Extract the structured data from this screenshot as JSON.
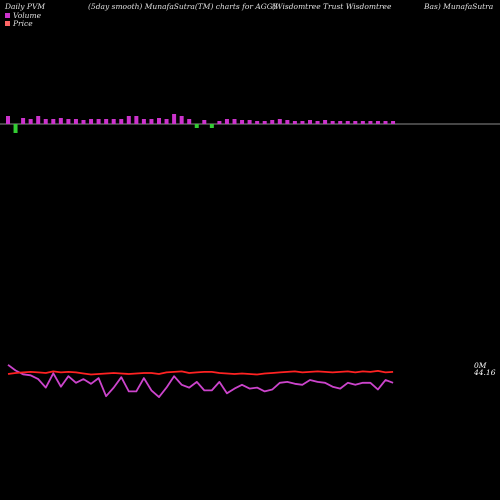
{
  "header": {
    "left": "Daily PVM",
    "center": "(5day smooth) MunafaSutra(TM) charts for AGGY",
    "right1": "(Wisdomtree   Trust Wisdomtree",
    "right2": "Bas) MunafaSutra"
  },
  "legend": {
    "volume_label": "Volume",
    "price_label": "Price",
    "volume_color": "#cc33cc",
    "price_color": "#ff6666"
  },
  "labels": {
    "volume_end": "0M",
    "price_end": "44.16"
  },
  "colors": {
    "background": "#000000",
    "axis": "#bbbbbb",
    "bar_up": "#cc33cc",
    "bar_down": "#33cc33",
    "volume_line": "#cc44cc",
    "price_line": "#ff2222"
  },
  "chart_data": {
    "type": "line",
    "x_count": 52,
    "volume_bars": [
      8,
      -9,
      6,
      5,
      8,
      5,
      5,
      6,
      5,
      5,
      4,
      5,
      5,
      5,
      5,
      5,
      8,
      8,
      5,
      5,
      6,
      5,
      10,
      8,
      5,
      -4,
      4,
      -4,
      3,
      5,
      5,
      4,
      4,
      3,
      3,
      4,
      5,
      4,
      3,
      3,
      4,
      3,
      4,
      3,
      3,
      3,
      3,
      3,
      3,
      3,
      3,
      3
    ],
    "volume_line": [
      66,
      60,
      56,
      55,
      51,
      42,
      57,
      43,
      54,
      47,
      51,
      46,
      52,
      33,
      42,
      53,
      38,
      38,
      52,
      39,
      32,
      42,
      54,
      45,
      42,
      48,
      39,
      39,
      48,
      36,
      41,
      45,
      41,
      42,
      38,
      40,
      47,
      48,
      46,
      45,
      50,
      48,
      47,
      43,
      41,
      47,
      45,
      47,
      47,
      40,
      50,
      47
    ],
    "price_line": [
      50,
      52,
      53,
      54,
      53,
      52,
      55,
      53,
      54,
      53,
      51,
      49,
      50,
      51,
      52,
      51,
      50,
      51,
      52,
      52,
      50,
      53,
      54,
      55,
      52,
      53,
      54,
      54,
      52,
      51,
      50,
      51,
      50,
      49,
      51,
      52,
      53,
      54,
      55,
      53,
      54,
      55,
      54,
      53,
      54,
      55,
      53,
      55,
      54,
      56,
      53,
      54
    ]
  }
}
